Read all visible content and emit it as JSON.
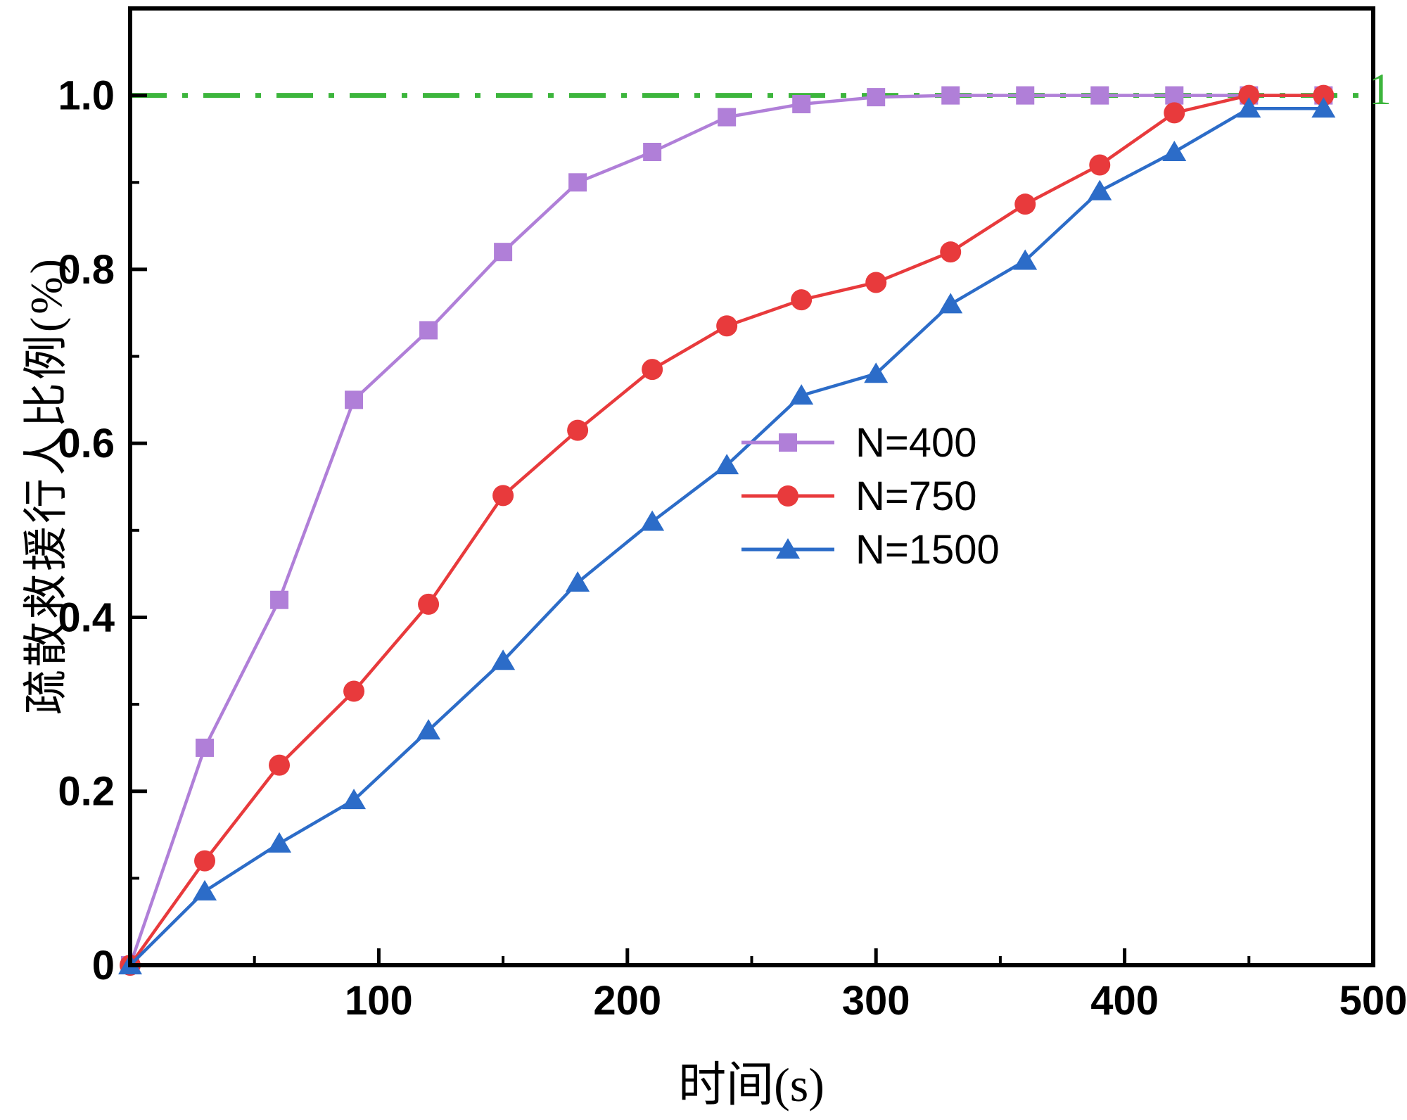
{
  "chart_data": {
    "type": "line",
    "title": "",
    "xlabel": "时间(s)",
    "ylabel": "疏散救援行人比例(%)",
    "xlim": [
      0,
      500
    ],
    "ylim": [
      0,
      1.1
    ],
    "grid": false,
    "legend_position": "right-center",
    "xticks": [
      100,
      200,
      300,
      400,
      500
    ],
    "xtick_labels": [
      "100",
      "200",
      "300",
      "400",
      "500"
    ],
    "xticks_minor": [
      50,
      150,
      250,
      350,
      450
    ],
    "yticks": [
      0,
      0.2,
      0.4,
      0.6,
      0.8,
      1.0
    ],
    "ytick_labels": [
      "0",
      "0.2",
      "0.4",
      "0.6",
      "0.8",
      "1.0"
    ],
    "yticks_minor": [
      0.1,
      0.3,
      0.5,
      0.7,
      0.9
    ],
    "axis_color": "#000000",
    "background_color": "#ffffff",
    "reference_line": {
      "y": 1.0,
      "label": "1",
      "color": "#3cb53c",
      "style": "dash-dot"
    },
    "x": [
      0,
      30,
      60,
      90,
      120,
      150,
      180,
      210,
      240,
      270,
      300,
      330,
      360,
      390,
      420,
      450,
      480
    ],
    "series": [
      {
        "name": "N=400",
        "color": "#b07fd8",
        "marker": "square",
        "values": [
          0,
          0.25,
          0.42,
          0.65,
          0.73,
          0.82,
          0.9,
          0.935,
          0.975,
          0.99,
          0.998,
          1.0,
          1.0,
          1.0,
          1.0,
          1.0,
          1.0
        ]
      },
      {
        "name": "N=750",
        "color": "#e83a3c",
        "marker": "circle",
        "values": [
          0,
          0.12,
          0.23,
          0.315,
          0.415,
          0.54,
          0.615,
          0.685,
          0.735,
          0.765,
          0.785,
          0.82,
          0.875,
          0.92,
          0.98,
          1.0,
          1.0
        ]
      },
      {
        "name": "N=1500",
        "color": "#2c6cc8",
        "marker": "triangle",
        "values": [
          0,
          0.085,
          0.14,
          0.19,
          0.27,
          0.35,
          0.44,
          0.51,
          0.575,
          0.655,
          0.68,
          0.76,
          0.81,
          0.89,
          0.935,
          0.985,
          0.985
        ]
      }
    ]
  }
}
